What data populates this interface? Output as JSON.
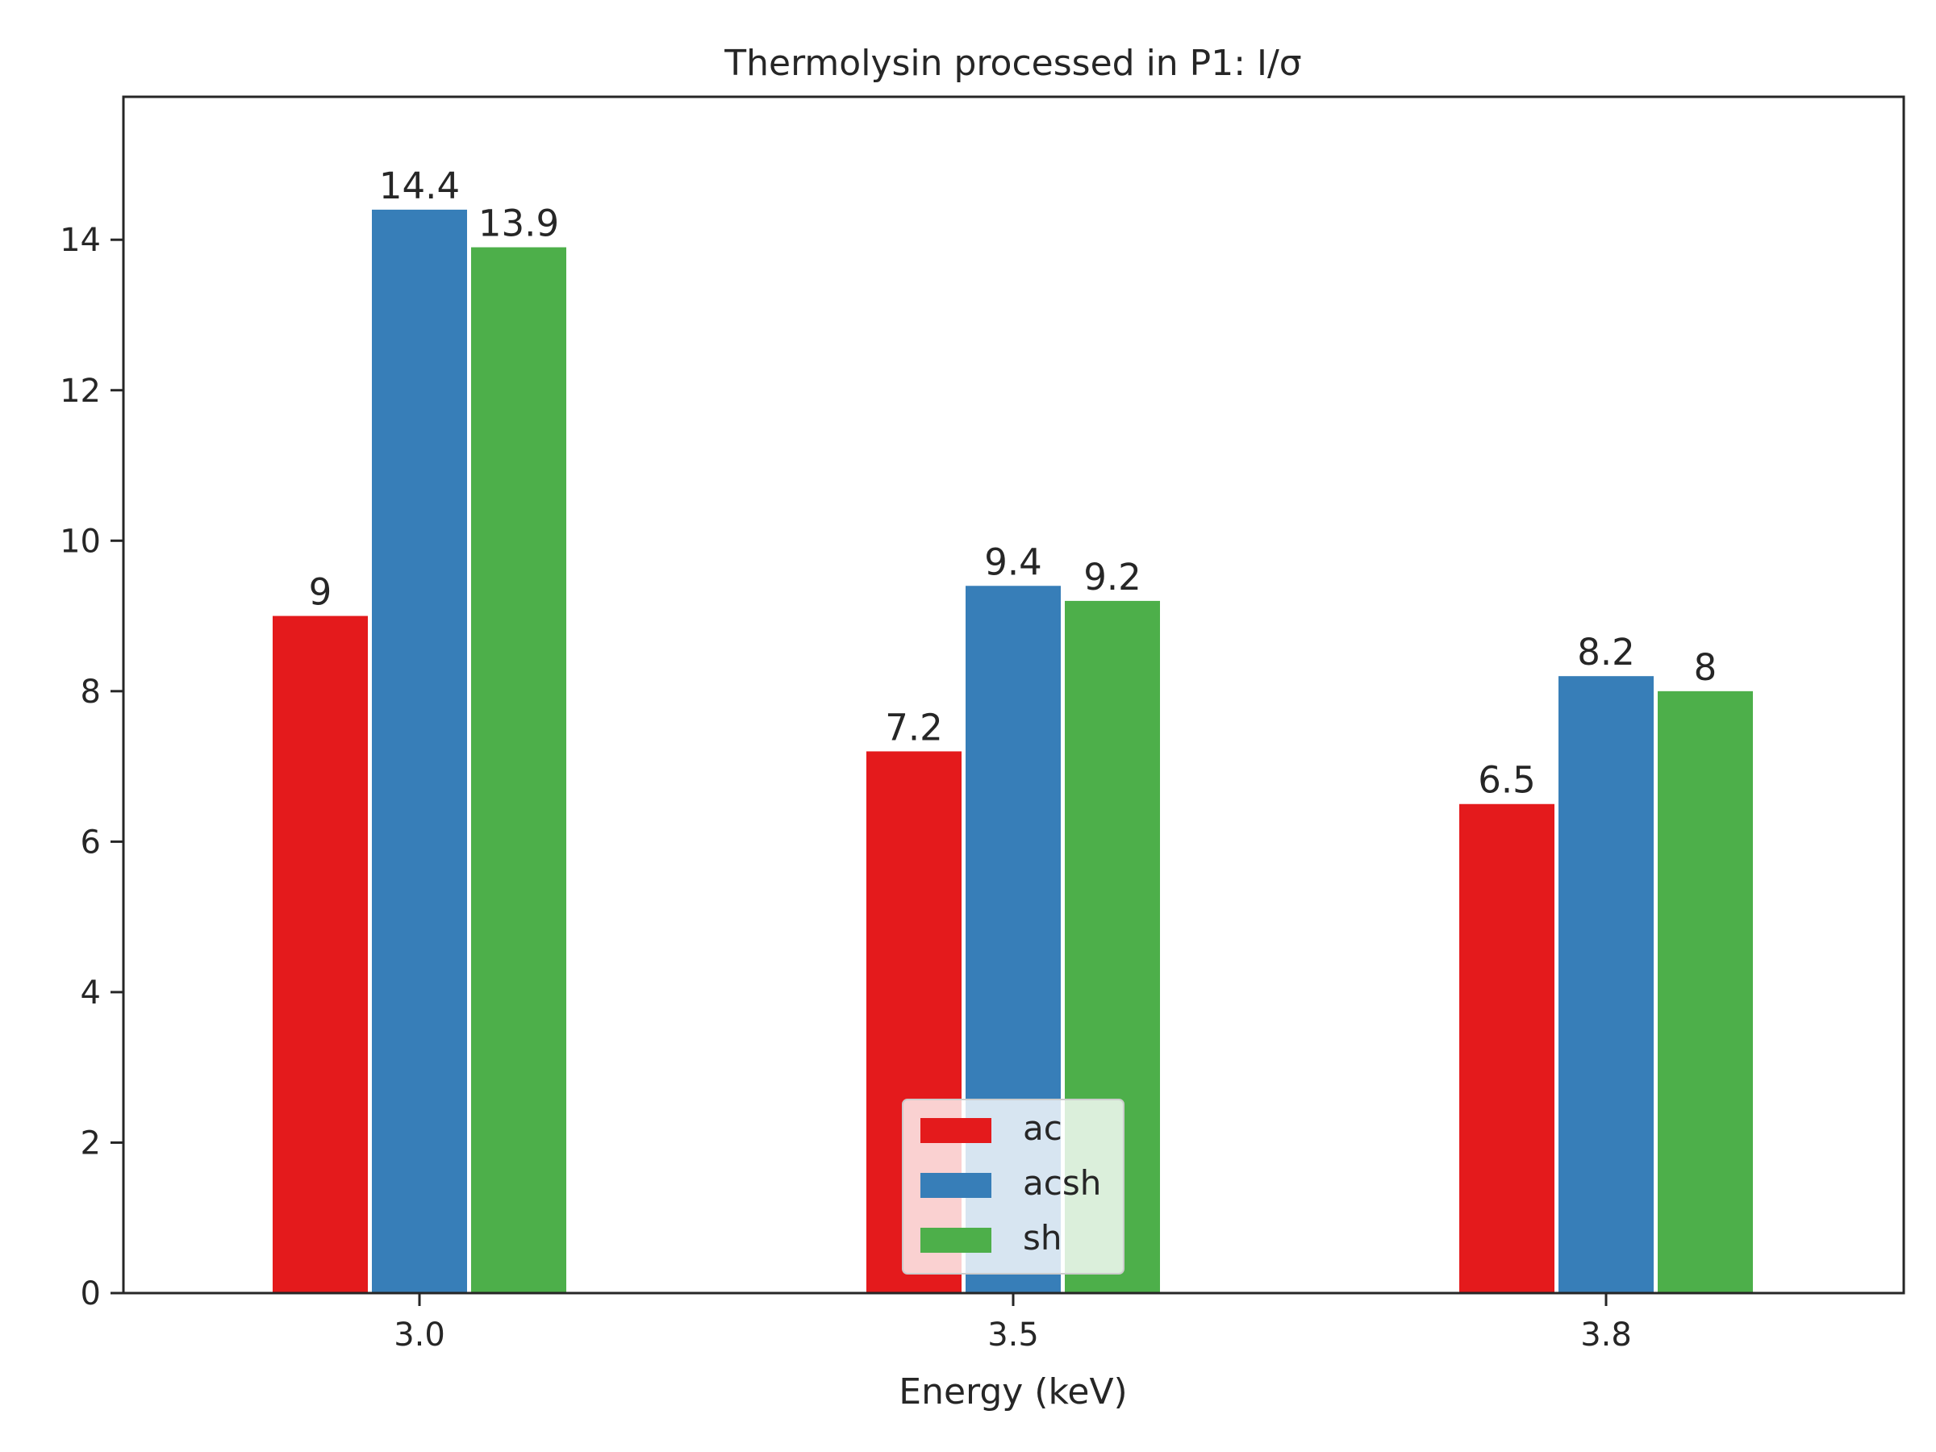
{
  "chart_data": {
    "type": "bar",
    "title": "Thermolysin processed in P1: I/σ",
    "xlabel": "Energy (keV)",
    "ylabel": "",
    "categories": [
      "3.0",
      "3.5",
      "3.8"
    ],
    "ylim": [
      0,
      15.9
    ],
    "yticks": [
      0,
      2,
      4,
      6,
      8,
      10,
      12,
      14
    ],
    "grid": false,
    "legend_position": "bottom-center",
    "series": [
      {
        "name": "ac",
        "color": "#e41a1c",
        "values": [
          9,
          7.2,
          6.5
        ],
        "labels": [
          "9",
          "7.2",
          "6.5"
        ]
      },
      {
        "name": "acsh",
        "color": "#377eb8",
        "values": [
          14.4,
          9.4,
          8.2
        ],
        "labels": [
          "14.4",
          "9.4",
          "8.2"
        ]
      },
      {
        "name": "sh",
        "color": "#4daf4a",
        "values": [
          13.9,
          9.2,
          8
        ],
        "labels": [
          "13.9",
          "9.2",
          "8"
        ]
      }
    ]
  }
}
